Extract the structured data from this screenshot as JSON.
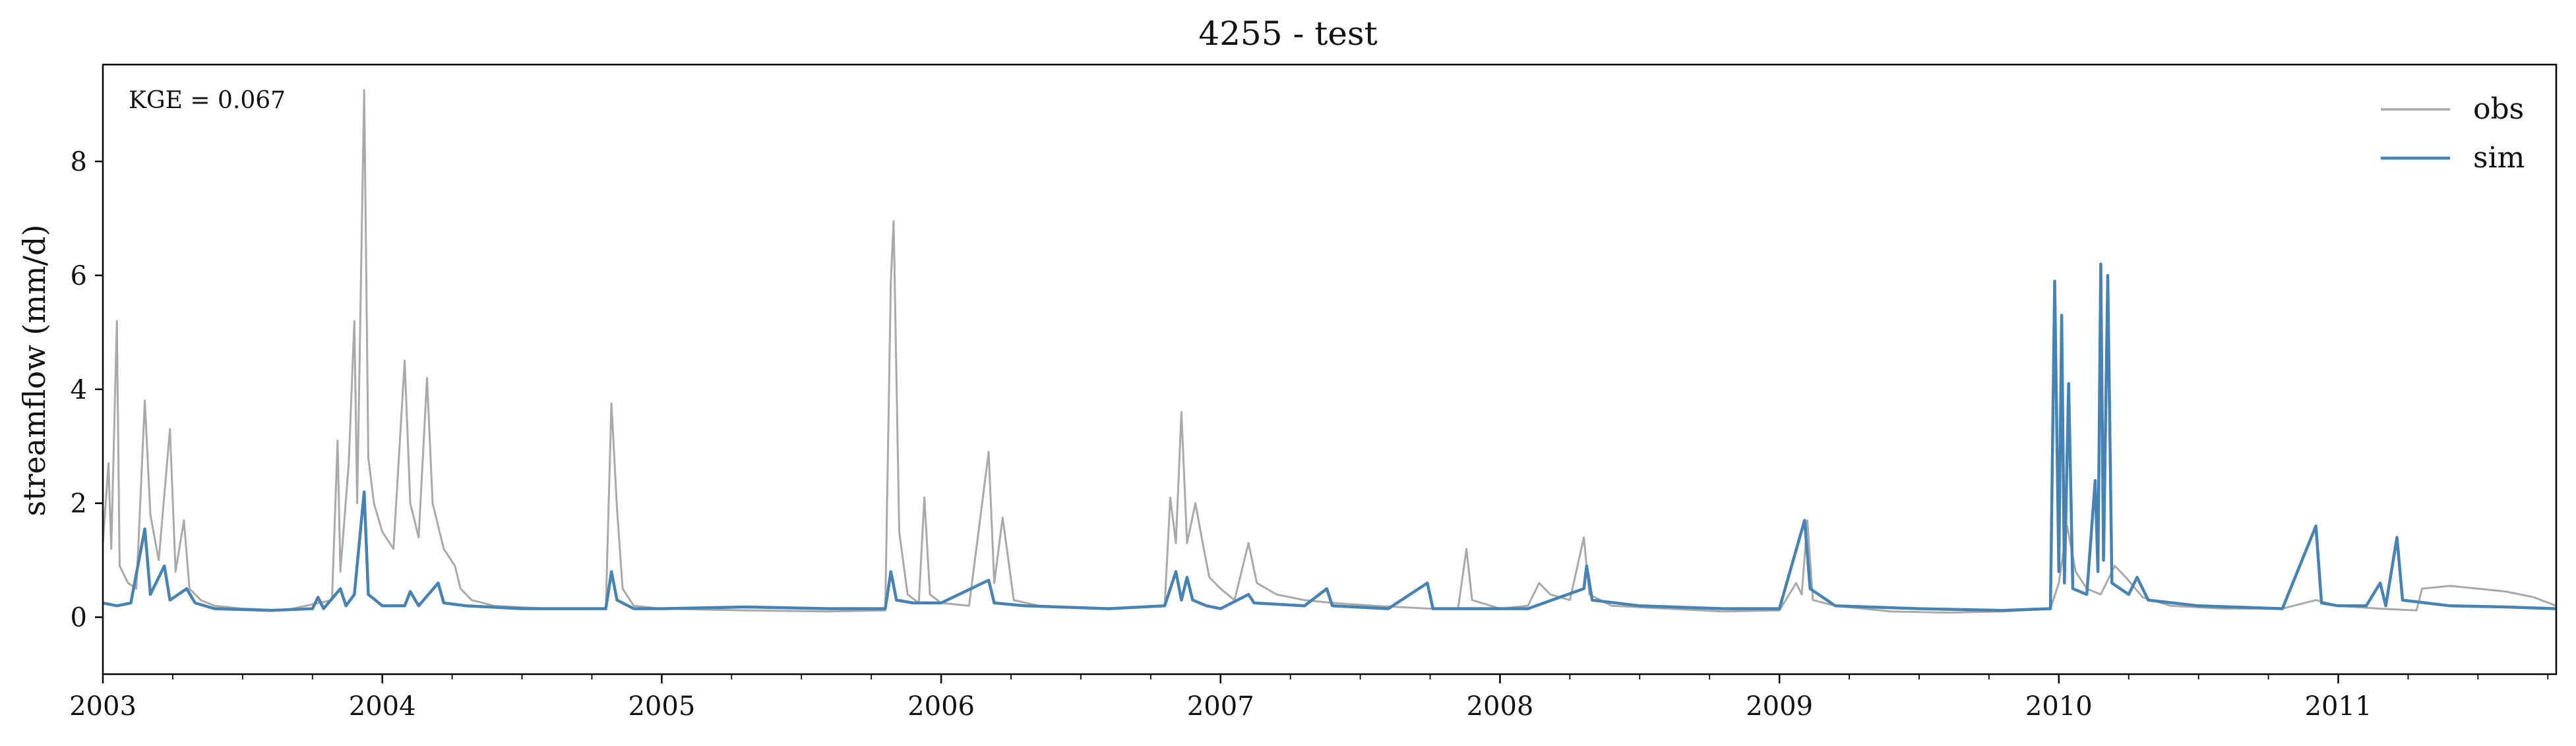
{
  "chart_data": {
    "type": "line",
    "title": "4255 - test",
    "xlabel": "",
    "ylabel": "streamflow (mm/d)",
    "xlim": [
      2003.0,
      2011.78
    ],
    "ylim": [
      -1.0,
      9.7
    ],
    "y_ticks": [
      0,
      2,
      4,
      6,
      8
    ],
    "x_ticks": [
      {
        "value": 2003,
        "label": "2003"
      },
      {
        "value": 2004,
        "label": "2004"
      },
      {
        "value": 2005,
        "label": "2005"
      },
      {
        "value": 2006,
        "label": "2006"
      },
      {
        "value": 2007,
        "label": "2007"
      },
      {
        "value": 2008,
        "label": "2008"
      },
      {
        "value": 2009,
        "label": "2009"
      },
      {
        "value": 2010,
        "label": "2010"
      },
      {
        "value": 2011,
        "label": "2011"
      }
    ],
    "annotation": "KGE = 0.067",
    "legend_position": "top-right",
    "grid": false,
    "series": [
      {
        "name": "obs",
        "color": "#a9a9a9",
        "points": [
          [
            2003.0,
            1.3
          ],
          [
            2003.02,
            2.7
          ],
          [
            2003.03,
            1.2
          ],
          [
            2003.05,
            5.2
          ],
          [
            2003.06,
            0.9
          ],
          [
            2003.09,
            0.6
          ],
          [
            2003.12,
            0.5
          ],
          [
            2003.15,
            3.8
          ],
          [
            2003.17,
            1.8
          ],
          [
            2003.2,
            1.0
          ],
          [
            2003.24,
            3.3
          ],
          [
            2003.26,
            0.8
          ],
          [
            2003.29,
            1.7
          ],
          [
            2003.31,
            0.5
          ],
          [
            2003.35,
            0.3
          ],
          [
            2003.4,
            0.2
          ],
          [
            2003.5,
            0.15
          ],
          [
            2003.65,
            0.12
          ],
          [
            2003.82,
            0.3
          ],
          [
            2003.84,
            3.1
          ],
          [
            2003.85,
            0.8
          ],
          [
            2003.88,
            2.7
          ],
          [
            2003.9,
            5.2
          ],
          [
            2003.91,
            2.0
          ],
          [
            2003.935,
            9.25
          ],
          [
            2003.95,
            2.8
          ],
          [
            2003.97,
            2.0
          ],
          [
            2004.0,
            1.5
          ],
          [
            2004.04,
            1.2
          ],
          [
            2004.08,
            4.5
          ],
          [
            2004.1,
            2.0
          ],
          [
            2004.13,
            1.4
          ],
          [
            2004.16,
            4.2
          ],
          [
            2004.18,
            2.0
          ],
          [
            2004.22,
            1.2
          ],
          [
            2004.26,
            0.9
          ],
          [
            2004.28,
            0.5
          ],
          [
            2004.32,
            0.3
          ],
          [
            2004.4,
            0.2
          ],
          [
            2004.6,
            0.15
          ],
          [
            2004.8,
            0.15
          ],
          [
            2004.82,
            3.75
          ],
          [
            2004.84,
            1.9
          ],
          [
            2004.86,
            0.5
          ],
          [
            2004.9,
            0.2
          ],
          [
            2005.0,
            0.15
          ],
          [
            2005.3,
            0.12
          ],
          [
            2005.6,
            0.1
          ],
          [
            2005.8,
            0.12
          ],
          [
            2005.82,
            5.9
          ],
          [
            2005.83,
            6.95
          ],
          [
            2005.85,
            1.5
          ],
          [
            2005.88,
            0.4
          ],
          [
            2005.92,
            0.25
          ],
          [
            2005.94,
            2.1
          ],
          [
            2005.96,
            0.4
          ],
          [
            2006.0,
            0.25
          ],
          [
            2006.1,
            0.2
          ],
          [
            2006.17,
            2.9
          ],
          [
            2006.19,
            0.6
          ],
          [
            2006.22,
            1.75
          ],
          [
            2006.26,
            0.3
          ],
          [
            2006.35,
            0.2
          ],
          [
            2006.6,
            0.15
          ],
          [
            2006.8,
            0.2
          ],
          [
            2006.82,
            2.1
          ],
          [
            2006.84,
            1.3
          ],
          [
            2006.86,
            3.6
          ],
          [
            2006.88,
            1.3
          ],
          [
            2006.91,
            2.0
          ],
          [
            2006.94,
            1.2
          ],
          [
            2006.96,
            0.7
          ],
          [
            2007.0,
            0.5
          ],
          [
            2007.05,
            0.3
          ],
          [
            2007.1,
            1.3
          ],
          [
            2007.13,
            0.6
          ],
          [
            2007.2,
            0.4
          ],
          [
            2007.3,
            0.3
          ],
          [
            2007.4,
            0.25
          ],
          [
            2007.55,
            0.2
          ],
          [
            2007.75,
            0.15
          ],
          [
            2007.85,
            0.15
          ],
          [
            2007.88,
            1.2
          ],
          [
            2007.9,
            0.3
          ],
          [
            2008.0,
            0.15
          ],
          [
            2008.1,
            0.2
          ],
          [
            2008.14,
            0.6
          ],
          [
            2008.18,
            0.4
          ],
          [
            2008.25,
            0.3
          ],
          [
            2008.3,
            1.4
          ],
          [
            2008.32,
            0.4
          ],
          [
            2008.4,
            0.2
          ],
          [
            2008.6,
            0.15
          ],
          [
            2008.8,
            0.1
          ],
          [
            2009.0,
            0.12
          ],
          [
            2009.06,
            0.6
          ],
          [
            2009.08,
            0.4
          ],
          [
            2009.1,
            1.7
          ],
          [
            2009.12,
            0.3
          ],
          [
            2009.2,
            0.2
          ],
          [
            2009.4,
            0.1
          ],
          [
            2009.6,
            0.08
          ],
          [
            2009.8,
            0.1
          ],
          [
            2009.97,
            0.15
          ],
          [
            2010.0,
            0.6
          ],
          [
            2010.03,
            1.6
          ],
          [
            2010.06,
            0.8
          ],
          [
            2010.1,
            0.5
          ],
          [
            2010.15,
            0.4
          ],
          [
            2010.2,
            0.9
          ],
          [
            2010.24,
            0.7
          ],
          [
            2010.3,
            0.35
          ],
          [
            2010.4,
            0.2
          ],
          [
            2010.6,
            0.15
          ],
          [
            2010.8,
            0.15
          ],
          [
            2010.92,
            0.3
          ],
          [
            2011.0,
            0.2
          ],
          [
            2011.15,
            0.15
          ],
          [
            2011.28,
            0.12
          ],
          [
            2011.3,
            0.5
          ],
          [
            2011.4,
            0.55
          ],
          [
            2011.5,
            0.5
          ],
          [
            2011.6,
            0.45
          ],
          [
            2011.7,
            0.35
          ],
          [
            2011.78,
            0.2
          ]
        ]
      },
      {
        "name": "sim",
        "color": "#4682b4",
        "points": [
          [
            2003.0,
            0.25
          ],
          [
            2003.05,
            0.2
          ],
          [
            2003.1,
            0.25
          ],
          [
            2003.15,
            1.55
          ],
          [
            2003.17,
            0.4
          ],
          [
            2003.22,
            0.9
          ],
          [
            2003.24,
            0.3
          ],
          [
            2003.3,
            0.5
          ],
          [
            2003.33,
            0.25
          ],
          [
            2003.4,
            0.15
          ],
          [
            2003.6,
            0.12
          ],
          [
            2003.75,
            0.15
          ],
          [
            2003.77,
            0.35
          ],
          [
            2003.79,
            0.15
          ],
          [
            2003.85,
            0.5
          ],
          [
            2003.87,
            0.2
          ],
          [
            2003.9,
            0.4
          ],
          [
            2003.935,
            2.2
          ],
          [
            2003.95,
            0.4
          ],
          [
            2004.0,
            0.2
          ],
          [
            2004.08,
            0.2
          ],
          [
            2004.1,
            0.45
          ],
          [
            2004.13,
            0.2
          ],
          [
            2004.2,
            0.6
          ],
          [
            2004.22,
            0.25
          ],
          [
            2004.3,
            0.2
          ],
          [
            2004.5,
            0.15
          ],
          [
            2004.8,
            0.15
          ],
          [
            2004.82,
            0.8
          ],
          [
            2004.84,
            0.3
          ],
          [
            2004.9,
            0.15
          ],
          [
            2005.0,
            0.15
          ],
          [
            2005.3,
            0.18
          ],
          [
            2005.6,
            0.15
          ],
          [
            2005.8,
            0.15
          ],
          [
            2005.82,
            0.8
          ],
          [
            2005.84,
            0.3
          ],
          [
            2005.9,
            0.25
          ],
          [
            2006.0,
            0.25
          ],
          [
            2006.17,
            0.65
          ],
          [
            2006.19,
            0.25
          ],
          [
            2006.3,
            0.2
          ],
          [
            2006.6,
            0.15
          ],
          [
            2006.8,
            0.2
          ],
          [
            2006.84,
            0.8
          ],
          [
            2006.86,
            0.3
          ],
          [
            2006.88,
            0.7
          ],
          [
            2006.9,
            0.3
          ],
          [
            2006.95,
            0.2
          ],
          [
            2007.0,
            0.15
          ],
          [
            2007.1,
            0.4
          ],
          [
            2007.12,
            0.25
          ],
          [
            2007.3,
            0.2
          ],
          [
            2007.38,
            0.5
          ],
          [
            2007.4,
            0.2
          ],
          [
            2007.6,
            0.15
          ],
          [
            2007.74,
            0.6
          ],
          [
            2007.76,
            0.15
          ],
          [
            2007.9,
            0.15
          ],
          [
            2008.1,
            0.15
          ],
          [
            2008.3,
            0.5
          ],
          [
            2008.31,
            0.9
          ],
          [
            2008.33,
            0.3
          ],
          [
            2008.5,
            0.2
          ],
          [
            2008.8,
            0.15
          ],
          [
            2009.0,
            0.15
          ],
          [
            2009.09,
            1.7
          ],
          [
            2009.11,
            0.5
          ],
          [
            2009.2,
            0.2
          ],
          [
            2009.5,
            0.15
          ],
          [
            2009.8,
            0.12
          ],
          [
            2009.97,
            0.15
          ],
          [
            2009.985,
            5.9
          ],
          [
            2010.0,
            0.8
          ],
          [
            2010.01,
            5.3
          ],
          [
            2010.02,
            0.6
          ],
          [
            2010.035,
            4.1
          ],
          [
            2010.05,
            0.5
          ],
          [
            2010.1,
            0.4
          ],
          [
            2010.13,
            2.4
          ],
          [
            2010.14,
            0.8
          ],
          [
            2010.15,
            6.2
          ],
          [
            2010.16,
            1.0
          ],
          [
            2010.175,
            6.0
          ],
          [
            2010.19,
            0.6
          ],
          [
            2010.25,
            0.4
          ],
          [
            2010.28,
            0.7
          ],
          [
            2010.32,
            0.3
          ],
          [
            2010.5,
            0.2
          ],
          [
            2010.8,
            0.15
          ],
          [
            2010.92,
            1.6
          ],
          [
            2010.94,
            0.25
          ],
          [
            2011.0,
            0.2
          ],
          [
            2011.1,
            0.2
          ],
          [
            2011.15,
            0.6
          ],
          [
            2011.17,
            0.2
          ],
          [
            2011.21,
            1.4
          ],
          [
            2011.23,
            0.3
          ],
          [
            2011.4,
            0.2
          ],
          [
            2011.6,
            0.18
          ],
          [
            2011.78,
            0.15
          ]
        ]
      }
    ]
  }
}
